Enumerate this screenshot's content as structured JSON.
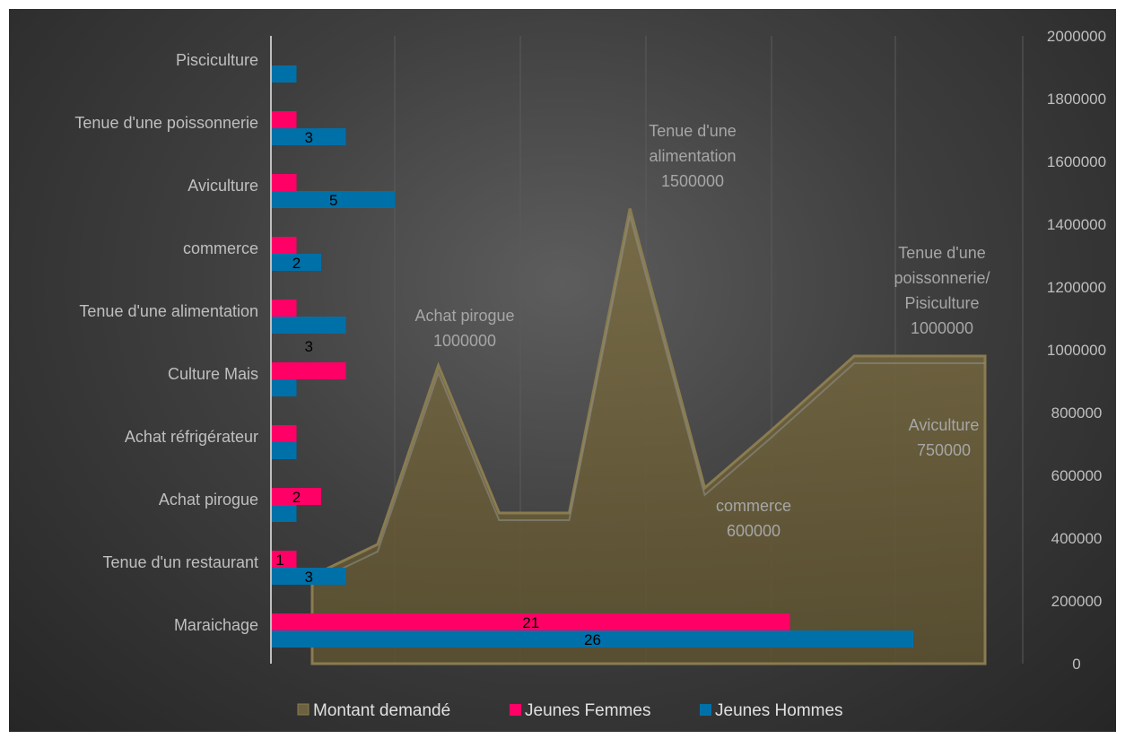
{
  "chart_data": {
    "type": "bar",
    "categories": [
      "Maraichage",
      "Tenue d'un restaurant",
      "Achat pirogue",
      "Achat réfrigérateur",
      "Culture Mais",
      "Tenue d'une alimentation",
      "commerce",
      "Aviculture",
      "Tenue d'une poissonnerie",
      "Pisciculture"
    ],
    "series": [
      {
        "name": "Jeunes Femmes",
        "color": "#ff0066",
        "values": [
          21,
          1,
          2,
          1,
          3,
          1,
          1,
          1,
          1,
          null
        ],
        "labels": [
          "21",
          "1",
          "2",
          "",
          "",
          "",
          "",
          "",
          "",
          ""
        ]
      },
      {
        "name": "Jeunes Hommes",
        "color": "#0070a8",
        "values": [
          26,
          3,
          1,
          1,
          1,
          3,
          2,
          5,
          3,
          1
        ],
        "labels": [
          "26",
          "3",
          "",
          "",
          "",
          "3",
          "2",
          "5",
          "3",
          ""
        ]
      }
    ],
    "bar_x_max": 28,
    "area_series": {
      "name": "Montant demandé",
      "type": "area",
      "color": "#6b5f3a",
      "x": [
        0,
        0.7,
        1.35,
        2,
        2.75,
        3.4,
        4.2,
        4.9,
        5.8,
        6.6,
        7.2
      ],
      "values": [
        280000,
        380000,
        950000,
        480000,
        480000,
        1450000,
        560000,
        740000,
        980000,
        980000,
        980000
      ],
      "annotations": [
        {
          "lines": [
            "Achat pirogue",
            "1000000"
          ]
        },
        {
          "lines": [
            "Tenue d'une",
            "alimentation",
            "1500000"
          ]
        },
        {
          "lines": [
            "commerce",
            "600000"
          ]
        },
        {
          "lines": [
            "Aviculture",
            "750000"
          ]
        },
        {
          "lines": [
            "Tenue d'une",
            "poissonnerie/",
            "Pisiculture",
            "1000000"
          ]
        }
      ]
    },
    "secondary_y_ticks": [
      "0",
      "200000",
      "400000",
      "600000",
      "800000",
      "1000000",
      "1200000",
      "1400000",
      "1600000",
      "1800000",
      "2000000"
    ],
    "ylim_secondary": [
      0,
      2000000
    ],
    "legend": {
      "position": "bottom",
      "items": [
        {
          "label": "Montant demandé",
          "color": "#6b5f3a"
        },
        {
          "label": "Jeunes Femmes",
          "color": "#ff0066"
        },
        {
          "label": "Jeunes Hommes",
          "color": "#0070a8"
        }
      ]
    },
    "grid": true
  }
}
